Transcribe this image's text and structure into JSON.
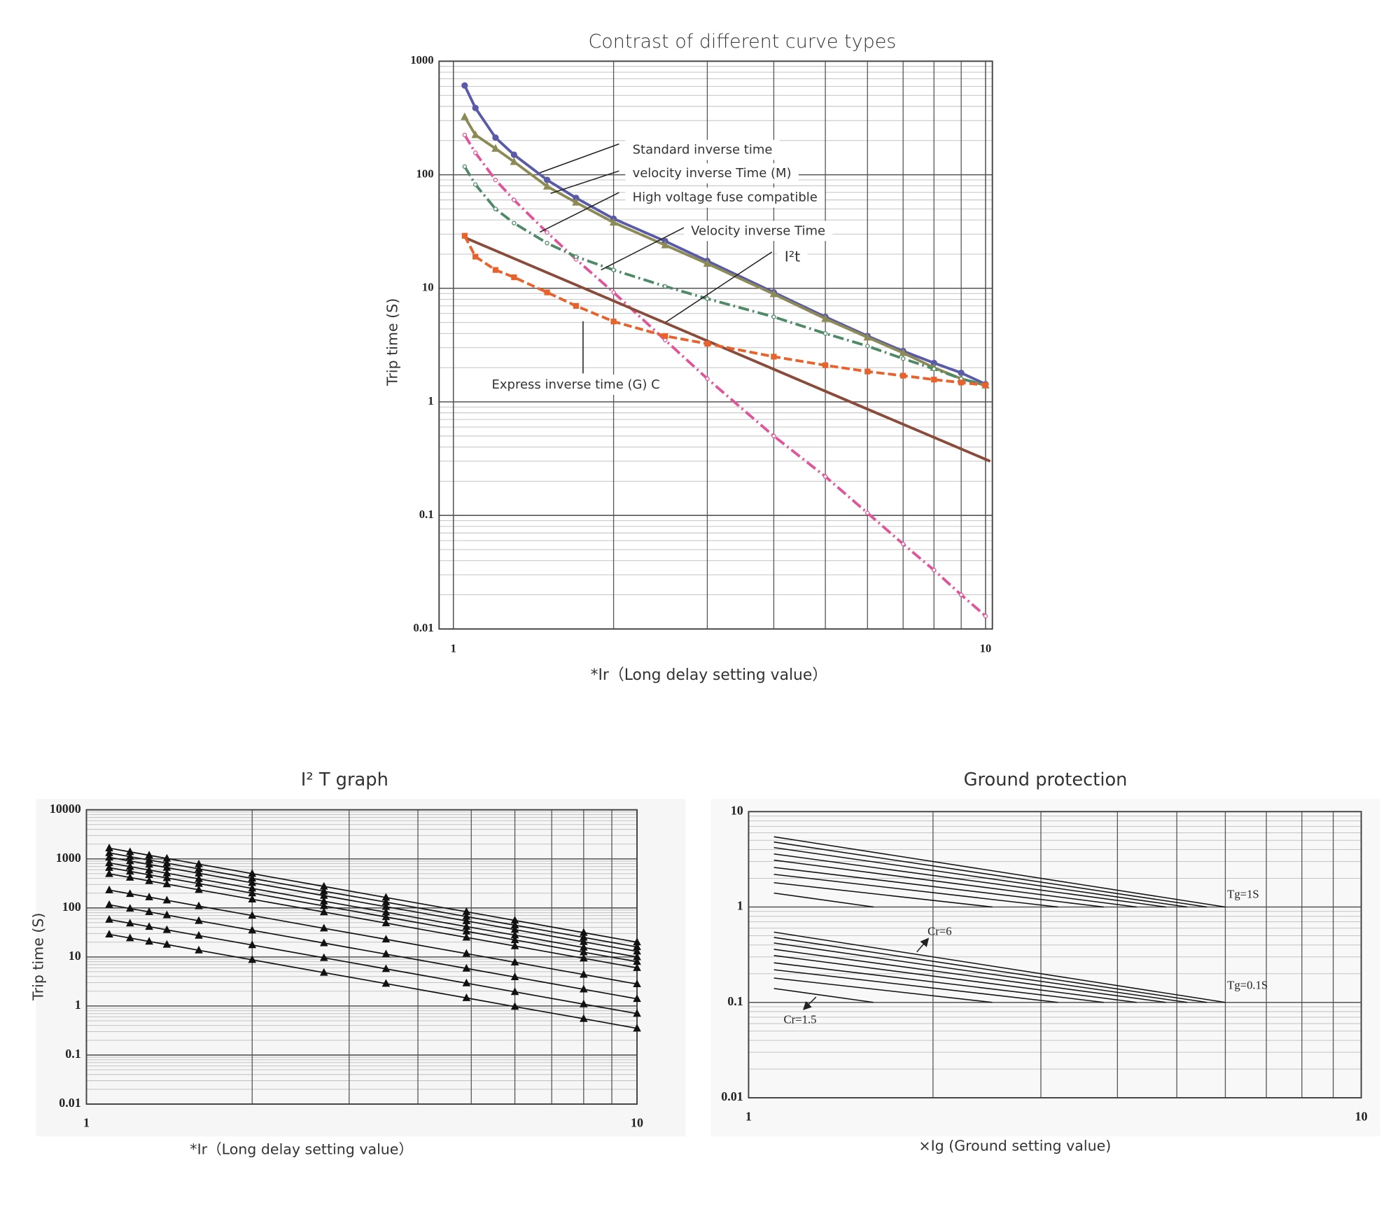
{
  "chart_data": [
    {
      "type": "line",
      "title": "Contrast of different curve types",
      "xlabel": "*Ir（Long delay setting value）",
      "ylabel": "Trip time (S)",
      "log_x": true,
      "log_y": true,
      "grid": true,
      "minor_grid": true,
      "xlim": [
        0.94,
        10.3
      ],
      "ylim": [
        0.01,
        1000
      ],
      "xticks": [
        1,
        10
      ],
      "yticks": [
        0.01,
        0.1,
        1,
        10,
        100,
        1000
      ],
      "series": [
        {
          "name": "Standard inverse time",
          "color": "#5a5ba8",
          "marker": "circle",
          "dash": "solid",
          "x": [
            1.05,
            1.1,
            1.2,
            1.3,
            1.5,
            1.7,
            2,
            2.5,
            3,
            4,
            5,
            6,
            7,
            8,
            9,
            10
          ],
          "values": [
            611,
            387,
            212,
            150,
            90,
            62.5,
            41,
            26,
            17.4,
            9.2,
            5.6,
            3.8,
            2.8,
            2.2,
            1.8,
            1.43
          ]
        },
        {
          "name": "velocity inverse Time (M)",
          "color": "#8c8a55",
          "marker": "triangle",
          "dash": "solid",
          "x": [
            1.05,
            1.1,
            1.2,
            1.3,
            1.5,
            1.7,
            2,
            2.5,
            3,
            4,
            5,
            6,
            7,
            8,
            9,
            10
          ],
          "values": [
            323,
            224,
            170,
            130,
            79,
            57,
            38,
            24,
            16.5,
            8.9,
            5.4,
            3.7,
            2.7,
            2.0,
            1.6,
            1.4
          ]
        },
        {
          "name": "High voltage fuse compatible",
          "color": "#e0559a",
          "marker": "dot",
          "dash": "dashdot",
          "x": [
            1.05,
            1.1,
            1.2,
            1.3,
            1.5,
            1.7,
            2,
            2.5,
            3,
            4,
            5,
            6,
            7,
            8,
            9,
            10
          ],
          "values": [
            224,
            156,
            90,
            60,
            31,
            18,
            9.2,
            3.5,
            1.6,
            0.5,
            0.22,
            0.105,
            0.056,
            0.033,
            0.02,
            0.013
          ]
        },
        {
          "name": "Velocity inverse Time",
          "color": "#4f8a68",
          "marker": "dot",
          "dash": "dashdot",
          "x": [
            1.05,
            1.1,
            1.2,
            1.3,
            1.5,
            1.7,
            2,
            2.5,
            3,
            4,
            5,
            6,
            7,
            8,
            9,
            10
          ],
          "values": [
            118,
            82,
            50,
            37.5,
            25,
            19,
            14.5,
            10.4,
            8.1,
            5.6,
            4.0,
            3.1,
            2.4,
            1.95,
            1.6,
            1.4
          ]
        },
        {
          "name": "I²t",
          "color": "#8b4b3b",
          "marker": "none",
          "dash": "solid",
          "x": [
            1.05,
            2,
            5,
            10.2
          ],
          "values": [
            28,
            7.75,
            1.24,
            0.3
          ]
        },
        {
          "name": "Express inverse time (G) C",
          "color": "#e8622c",
          "marker": "square",
          "dash": "dashed",
          "x": [
            1.05,
            1.1,
            1.2,
            1.3,
            1.5,
            1.7,
            2,
            2.5,
            3,
            4,
            5,
            6,
            7,
            8,
            9,
            10
          ],
          "values": [
            29,
            19,
            14.5,
            12.5,
            9.2,
            7.0,
            5.1,
            3.8,
            3.25,
            2.5,
            2.1,
            1.85,
            1.7,
            1.57,
            1.48,
            1.4
          ]
        }
      ]
    },
    {
      "type": "line",
      "title": "I² T graph",
      "xlabel": "*Ir（Long delay setting value）",
      "ylabel": "Trip time (S)",
      "log_x": true,
      "log_y": true,
      "grid": true,
      "minor_grid": true,
      "color": "#111111",
      "marker": "triangle",
      "xlim": [
        1,
        10
      ],
      "ylim": [
        0.01,
        10000
      ],
      "xticks": [
        1,
        10
      ],
      "yticks": [
        0.01,
        0.1,
        1,
        10,
        100,
        1000,
        10000
      ],
      "series": [
        {
          "x": [
            1.1,
            1.2,
            1.3,
            1.4,
            1.6,
            2,
            2.7,
            3.5,
            4.9,
            6,
            8,
            10
          ],
          "values": [
            28.9,
            24.3,
            20.7,
            17.9,
            13.7,
            8.75,
            4.8,
            2.86,
            1.46,
            0.97,
            0.55,
            0.35
          ]
        },
        {
          "x": [
            1.1,
            1.2,
            1.3,
            1.4,
            1.6,
            2,
            2.7,
            3.5,
            4.9,
            6,
            8,
            10
          ],
          "values": [
            57.9,
            48.6,
            41.4,
            35.7,
            27.3,
            17.5,
            9.6,
            5.71,
            2.92,
            1.94,
            1.09,
            0.7
          ]
        },
        {
          "x": [
            1.1,
            1.2,
            1.3,
            1.4,
            1.6,
            2,
            2.7,
            3.5,
            4.9,
            6,
            8,
            10
          ],
          "values": [
            116,
            97.2,
            82.8,
            71.4,
            54.7,
            35,
            19.2,
            11.4,
            5.83,
            3.89,
            2.19,
            1.4
          ]
        },
        {
          "x": [
            1.1,
            1.2,
            1.3,
            1.4,
            1.6,
            2,
            2.7,
            3.5,
            4.9,
            6,
            8,
            10
          ],
          "values": [
            231,
            194,
            166,
            143,
            109,
            70,
            38.4,
            22.9,
            11.7,
            7.78,
            4.38,
            2.8
          ]
        },
        {
          "x": [
            1.1,
            1.2,
            1.3,
            1.4,
            1.6,
            2,
            2.7,
            3.5,
            4.9,
            6,
            8,
            10
          ],
          "values": [
            496,
            417,
            355,
            306,
            234,
            150,
            82.3,
            49,
            25,
            16.7,
            9.38,
            6
          ]
        },
        {
          "x": [
            1.1,
            1.2,
            1.3,
            1.4,
            1.6,
            2,
            2.7,
            3.5,
            4.9,
            6,
            8,
            10
          ],
          "values": [
            661,
            556,
            473,
            408,
            313,
            200,
            110,
            65.3,
            33.3,
            22.2,
            12.5,
            8
          ]
        },
        {
          "x": [
            1.1,
            1.2,
            1.3,
            1.4,
            1.6,
            2,
            2.7,
            3.5,
            4.9,
            6,
            8,
            10
          ],
          "values": [
            826,
            694,
            592,
            510,
            391,
            250,
            137,
            81.6,
            41.6,
            27.8,
            15.6,
            10
          ]
        },
        {
          "x": [
            1.1,
            1.2,
            1.3,
            1.4,
            1.6,
            2,
            2.7,
            3.5,
            4.9,
            6,
            8,
            10
          ],
          "values": [
            1074,
            903,
            769,
            663,
            508,
            325,
            178,
            106,
            54.1,
            36.1,
            20.3,
            13
          ]
        },
        {
          "x": [
            1.1,
            1.2,
            1.3,
            1.4,
            1.6,
            2,
            2.7,
            3.5,
            4.9,
            6,
            8,
            10
          ],
          "values": [
            1322,
            1111,
            947,
            816,
            625,
            400,
            219,
            131,
            66.6,
            44.4,
            25,
            16
          ]
        },
        {
          "x": [
            1.1,
            1.2,
            1.3,
            1.4,
            1.6,
            2,
            2.7,
            3.5,
            4.9,
            6,
            8,
            10
          ],
          "values": [
            1653,
            1389,
            1183,
            1020,
            781,
            500,
            274,
            163,
            83.3,
            55.6,
            31.3,
            20
          ]
        }
      ]
    },
    {
      "type": "line",
      "title": "Ground protection",
      "xlabel": "×Ig (Ground setting value)",
      "log_x": true,
      "log_y": true,
      "grid": true,
      "minor_grid": true,
      "color": "#111111",
      "marker": "none",
      "xlim": [
        1,
        10
      ],
      "ylim": [
        0.01,
        10
      ],
      "xticks": [
        1,
        10
      ],
      "yticks": [
        0.01,
        0.1,
        1,
        10
      ],
      "annotations": [
        "Tg=1S",
        "Tg=0.1S",
        "Cr=6",
        "Cr=1.5"
      ],
      "series": [
        {
          "x": [
            1.1,
            6
          ],
          "values": [
            5.45,
            1
          ]
        },
        {
          "x": [
            1.1,
            5.6
          ],
          "values": [
            4.8,
            1
          ]
        },
        {
          "x": [
            1.1,
            5.2
          ],
          "values": [
            4.2,
            1
          ]
        },
        {
          "x": [
            1.1,
            4.8
          ],
          "values": [
            3.6,
            1
          ]
        },
        {
          "x": [
            1.1,
            4.3
          ],
          "values": [
            3.1,
            1
          ]
        },
        {
          "x": [
            1.1,
            3.8
          ],
          "values": [
            2.6,
            1
          ]
        },
        {
          "x": [
            1.1,
            3.2
          ],
          "values": [
            2.2,
            1
          ]
        },
        {
          "x": [
            1.1,
            2.5
          ],
          "values": [
            1.8,
            1
          ]
        },
        {
          "x": [
            1.1,
            1.6
          ],
          "values": [
            1.4,
            1
          ]
        },
        {
          "x": [
            1.1,
            6
          ],
          "values": [
            0.545,
            0.1
          ]
        },
        {
          "x": [
            1.1,
            5.6
          ],
          "values": [
            0.48,
            0.1
          ]
        },
        {
          "x": [
            1.1,
            5.2
          ],
          "values": [
            0.42,
            0.1
          ]
        },
        {
          "x": [
            1.1,
            4.8
          ],
          "values": [
            0.36,
            0.1
          ]
        },
        {
          "x": [
            1.1,
            4.3
          ],
          "values": [
            0.31,
            0.1
          ]
        },
        {
          "x": [
            1.1,
            3.8
          ],
          "values": [
            0.26,
            0.1
          ]
        },
        {
          "x": [
            1.1,
            3.2
          ],
          "values": [
            0.22,
            0.1
          ]
        },
        {
          "x": [
            1.1,
            2.5
          ],
          "values": [
            0.18,
            0.1
          ]
        },
        {
          "x": [
            1.1,
            1.6
          ],
          "values": [
            0.14,
            0.1
          ]
        }
      ]
    }
  ]
}
